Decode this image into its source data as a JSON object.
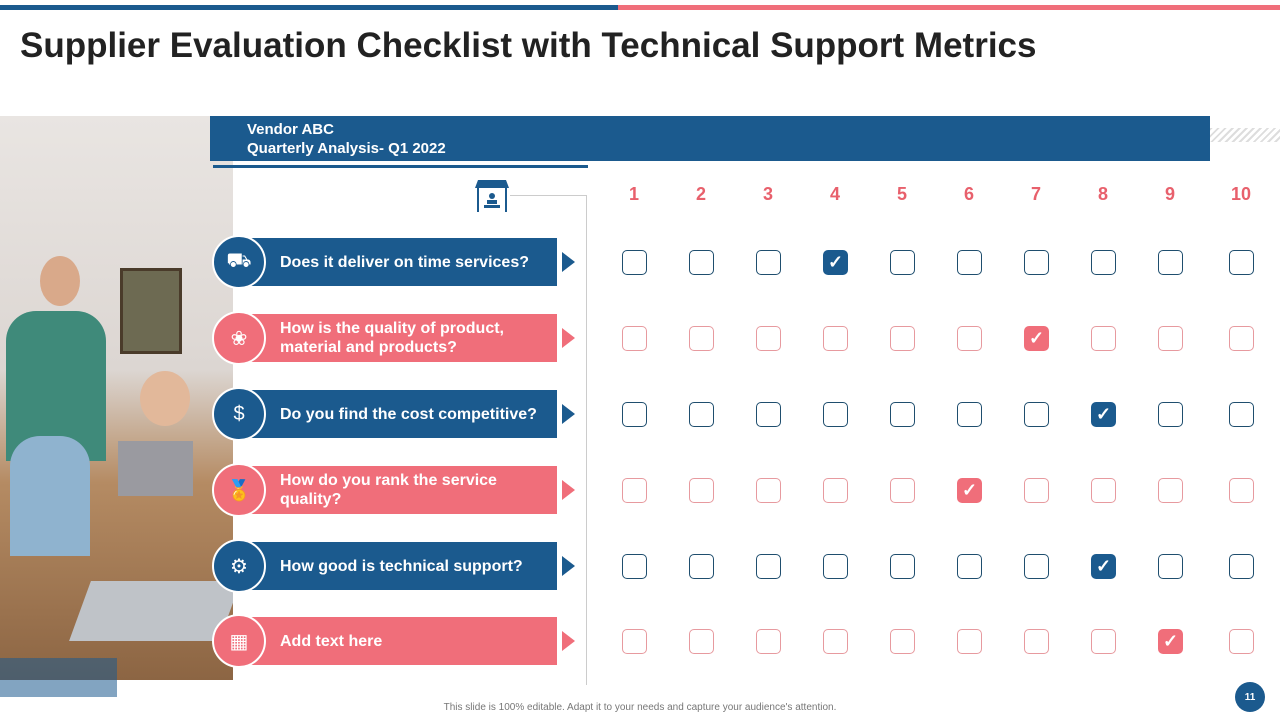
{
  "title": "Supplier Evaluation Checklist with Technical Support Metrics",
  "header": {
    "line1": "Vendor ABC",
    "line2": "Quarterly Analysis-  Q1 2022"
  },
  "columns": [
    "1",
    "2",
    "3",
    "4",
    "5",
    "6",
    "7",
    "8",
    "9",
    "10"
  ],
  "colors": {
    "blue": "#1b5a8e",
    "pink": "#f06e7a"
  },
  "rows": [
    {
      "label": "Does it deliver on time services?",
      "icon": "trolley-icon",
      "color": "blue",
      "checked": 4
    },
    {
      "label": "How is the quality of product, material and products?",
      "icon": "hands-flower-icon",
      "color": "pink",
      "checked": 7
    },
    {
      "label": "Do you find the cost competitive?",
      "icon": "money-bag-icon",
      "color": "blue",
      "checked": 8
    },
    {
      "label": "How do you rank the service quality?",
      "icon": "medal-icon",
      "color": "pink",
      "checked": 6
    },
    {
      "label": "How good is technical support?",
      "icon": "gear-wrench-icon",
      "color": "blue",
      "checked": 8
    },
    {
      "label": "Add text here",
      "icon": "store-icon",
      "color": "pink",
      "checked": 9
    }
  ],
  "footer": "This slide is 100% editable. Adapt it to your needs and capture your audience's attention.",
  "page_number": "11"
}
